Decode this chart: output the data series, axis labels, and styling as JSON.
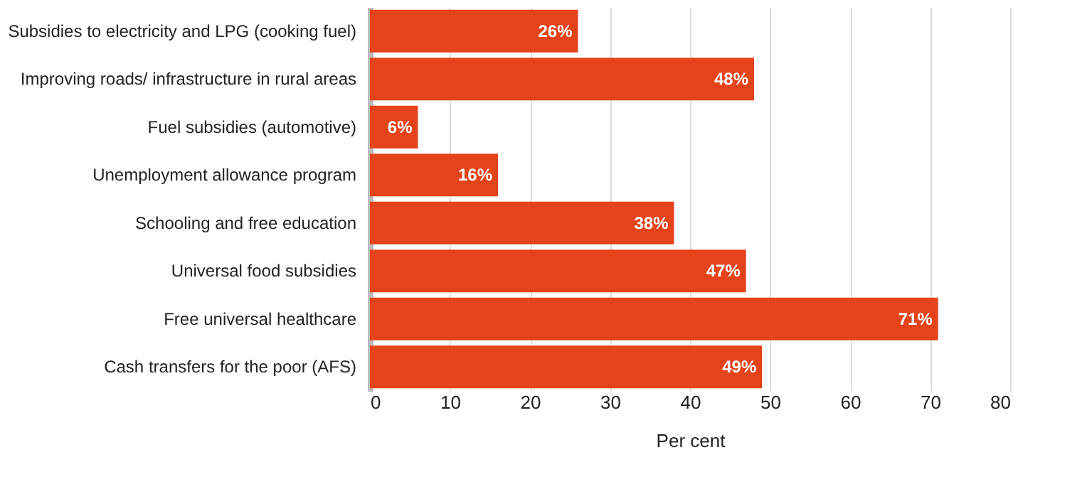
{
  "chart_data": {
    "type": "bar",
    "orientation": "horizontal",
    "xlabel": "Per cent",
    "categories": [
      "Subsidies to electricity and LPG (cooking fuel)",
      "Improving roads/ infrastructure in rural areas",
      "Fuel subsidies (automotive)",
      "Unemployment allowance program",
      "Schooling and free education",
      "Universal food subsidies",
      "Free universal healthcare",
      "Cash transfers for the poor (AFS)"
    ],
    "values": [
      26,
      48,
      6,
      16,
      38,
      47,
      71,
      49
    ],
    "value_labels": [
      "26%",
      "48%",
      "6%",
      "16%",
      "38%",
      "47%",
      "71%",
      "49%"
    ],
    "color": "#e5431a",
    "xlim": [
      0,
      80
    ],
    "xticks": [
      0,
      10,
      20,
      30,
      40,
      50,
      60,
      70,
      80
    ],
    "grid": "x"
  }
}
